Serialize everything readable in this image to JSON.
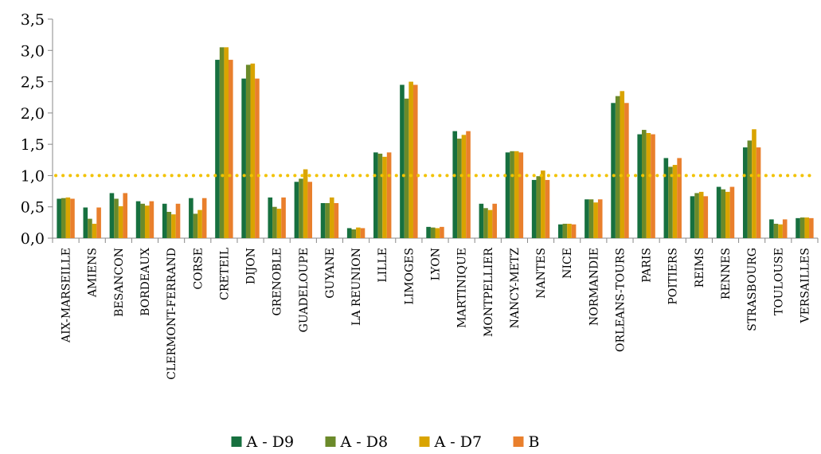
{
  "chart_data": {
    "type": "bar",
    "title": "",
    "xlabel": "",
    "ylabel": "",
    "ylim": [
      0,
      3.5
    ],
    "yticks": [
      "0,0",
      "0,5",
      "1,0",
      "1,5",
      "2,0",
      "2,5",
      "3,0",
      "3,5"
    ],
    "grid": false,
    "legend_position": "bottom",
    "reference_line": {
      "value": 1.0,
      "color": "#f2c200",
      "style": "dotted"
    },
    "categories": [
      "AIX-MARSEILLE",
      "AMIENS",
      "BESANCON",
      "BORDEAUX",
      "CLERMONT-FERRAND",
      "CORSE",
      "CRETEIL",
      "DIJON",
      "GRENOBLE",
      "GUADELOUPE",
      "GUYANE",
      "LA REUNION",
      "LILLE",
      "LIMOGES",
      "LYON",
      "MARTINIQUE",
      "MONTPELLIER",
      "NANCY-METZ",
      "NANTES",
      "NICE",
      "NORMANDIE",
      "ORLEANS-TOURS",
      "PARIS",
      "POITIERS",
      "REIMS",
      "RENNES",
      "STRASBOURG",
      "TOULOUSE",
      "VERSAILLES"
    ],
    "series": [
      {
        "name": "A - D9",
        "color": "#17703f",
        "values": [
          0.63,
          0.49,
          0.72,
          0.59,
          0.55,
          0.64,
          2.85,
          2.55,
          0.65,
          0.9,
          0.56,
          0.16,
          1.37,
          2.45,
          0.18,
          1.71,
          0.55,
          1.37,
          0.93,
          0.22,
          0.62,
          2.16,
          1.66,
          1.28,
          0.67,
          0.82,
          1.45,
          0.3,
          0.32
        ]
      },
      {
        "name": "A - D8",
        "color": "#6b8a2a",
        "values": [
          0.64,
          0.31,
          0.63,
          0.55,
          0.42,
          0.39,
          3.05,
          2.77,
          0.5,
          0.95,
          0.56,
          0.14,
          1.35,
          2.23,
          0.17,
          1.59,
          0.48,
          1.39,
          0.99,
          0.23,
          0.62,
          2.27,
          1.73,
          1.14,
          0.72,
          0.78,
          1.56,
          0.23,
          0.33
        ]
      },
      {
        "name": "A - D7",
        "color": "#d9a400",
        "values": [
          0.65,
          0.23,
          0.51,
          0.52,
          0.38,
          0.45,
          3.05,
          2.79,
          0.47,
          1.1,
          0.65,
          0.17,
          1.3,
          2.5,
          0.16,
          1.65,
          0.45,
          1.39,
          1.08,
          0.23,
          0.57,
          2.35,
          1.68,
          1.17,
          0.74,
          0.74,
          1.74,
          0.22,
          0.33
        ]
      },
      {
        "name": "B",
        "color": "#e97f2c",
        "values": [
          0.63,
          0.49,
          0.72,
          0.59,
          0.55,
          0.64,
          2.85,
          2.55,
          0.65,
          0.9,
          0.56,
          0.16,
          1.37,
          2.45,
          0.18,
          1.71,
          0.55,
          1.37,
          0.93,
          0.22,
          0.62,
          2.16,
          1.66,
          1.28,
          0.67,
          0.82,
          1.45,
          0.3,
          0.32
        ]
      }
    ]
  }
}
